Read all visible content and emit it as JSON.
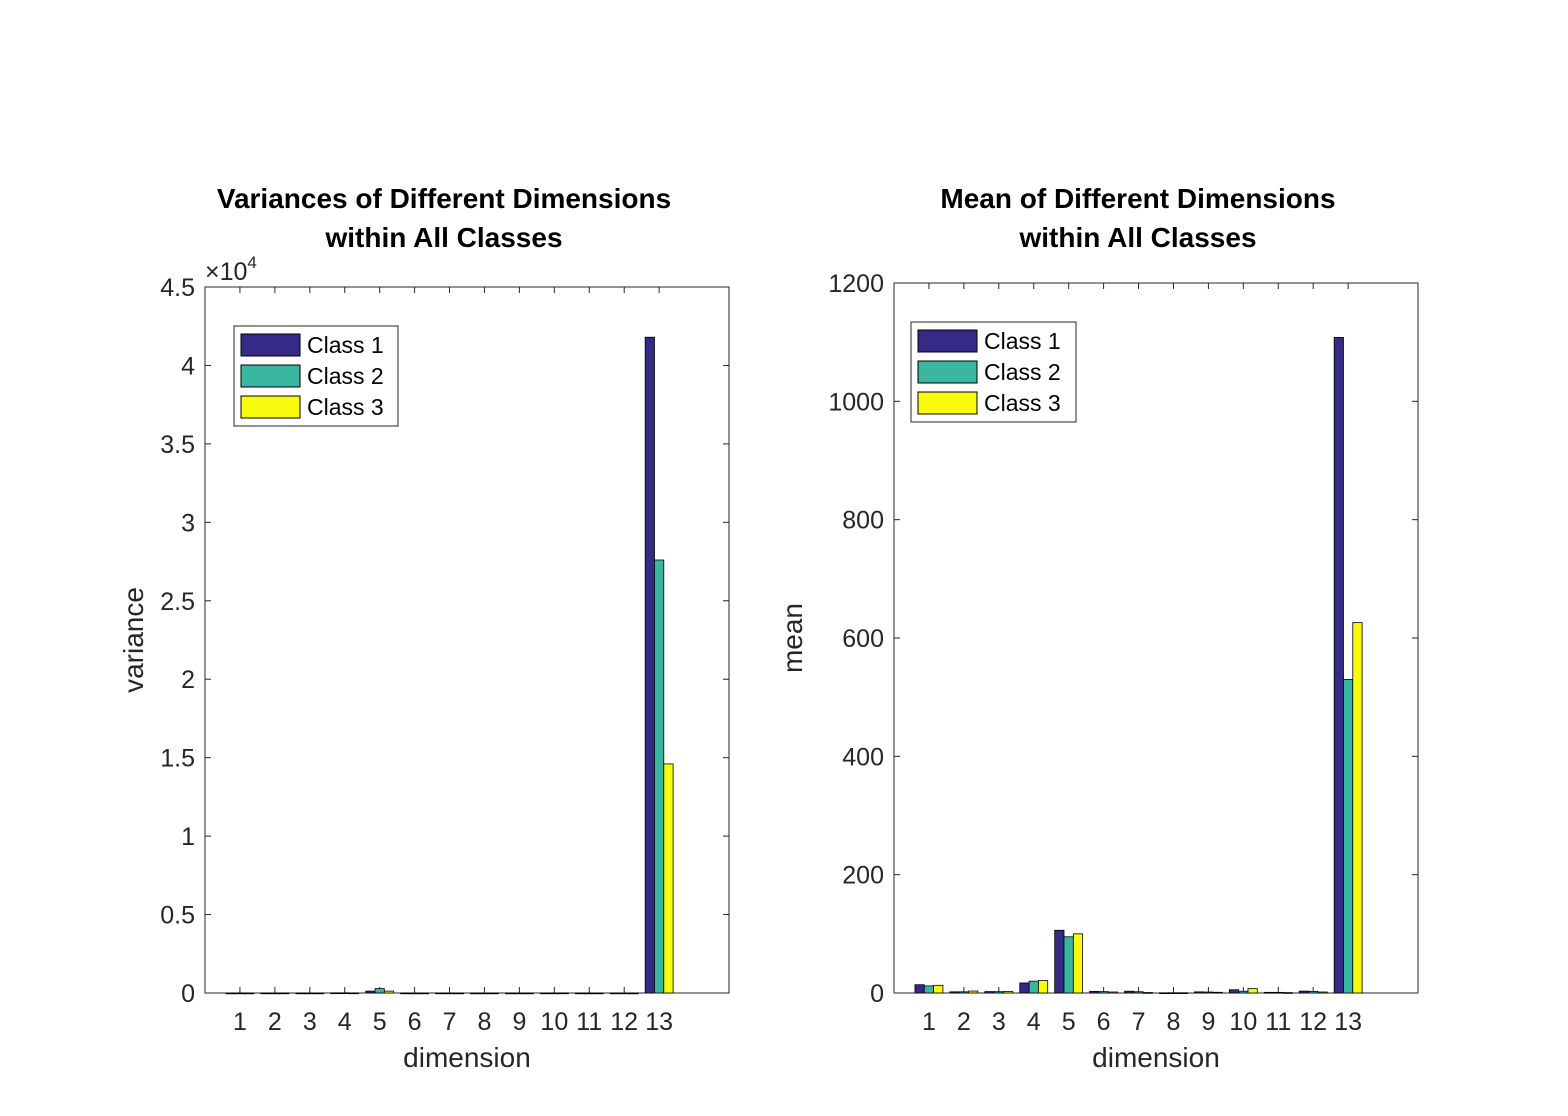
{
  "chart_data": [
    {
      "type": "bar",
      "title": [
        "Variances of Different Dimensions",
        "within All Classes"
      ],
      "xlabel": "dimension",
      "ylabel": "variance",
      "exponent_label": "×10",
      "exponent_power": "4",
      "ylim": [
        0,
        45000
      ],
      "yticks": [
        0,
        5000,
        10000,
        15000,
        20000,
        25000,
        30000,
        35000,
        40000,
        45000
      ],
      "ytick_labels": [
        "0",
        "0.5",
        "1",
        "1.5",
        "2",
        "2.5",
        "3",
        "3.5",
        "4",
        "4.5"
      ],
      "xlim": [
        0,
        15
      ],
      "categories": [
        "1",
        "2",
        "3",
        "4",
        "5",
        "6",
        "7",
        "8",
        "9",
        "10",
        "11",
        "12",
        "13"
      ],
      "legend_position": "top-left",
      "grid": false,
      "series": [
        {
          "name": "Class 1",
          "color": "#352A87",
          "values": [
            0.2,
            1.2,
            0.1,
            10,
            120,
            0.4,
            0.7,
            0.0,
            0.3,
            1.4,
            0.1,
            0.1,
            41800
          ]
        },
        {
          "name": "Class 2",
          "color": "#38B6A0",
          "values": [
            0.3,
            1.0,
            0.1,
            11,
            280,
            0.3,
            0.5,
            0.0,
            0.4,
            0.9,
            0.0,
            0.3,
            27600
          ]
        },
        {
          "name": "Class 3",
          "color": "#F9FB0E",
          "values": [
            0.3,
            1.1,
            0.0,
            5,
            120,
            0.1,
            0.1,
            0.0,
            0.2,
            5.3,
            0.0,
            0.1,
            14600
          ]
        }
      ]
    },
    {
      "type": "bar",
      "title": [
        "Mean of Different Dimensions",
        "within All Classes"
      ],
      "xlabel": "dimension",
      "ylabel": "mean",
      "ylim": [
        0,
        1200
      ],
      "yticks": [
        0,
        200,
        400,
        600,
        800,
        1000,
        1200
      ],
      "ytick_labels": [
        "0",
        "200",
        "400",
        "600",
        "800",
        "1000",
        "1200"
      ],
      "xlim": [
        0,
        15
      ],
      "categories": [
        "1",
        "2",
        "3",
        "4",
        "5",
        "6",
        "7",
        "8",
        "9",
        "10",
        "11",
        "12",
        "13"
      ],
      "legend_position": "top-left",
      "grid": false,
      "series": [
        {
          "name": "Class 1",
          "color": "#352A87",
          "values": [
            14,
            2,
            2.4,
            17,
            106,
            2.8,
            3,
            0.3,
            1.9,
            5.5,
            1.1,
            3.2,
            1108
          ]
        },
        {
          "name": "Class 2",
          "color": "#38B6A0",
          "values": [
            12,
            2,
            2.2,
            20,
            95,
            2.3,
            2.1,
            0.4,
            1.6,
            3,
            1.1,
            2.8,
            530
          ]
        },
        {
          "name": "Class 3",
          "color": "#F9FB0E",
          "values": [
            13,
            3.3,
            2.4,
            21,
            100,
            1.7,
            0.8,
            0.4,
            1.2,
            7.4,
            0.7,
            1.7,
            626
          ]
        }
      ]
    }
  ]
}
